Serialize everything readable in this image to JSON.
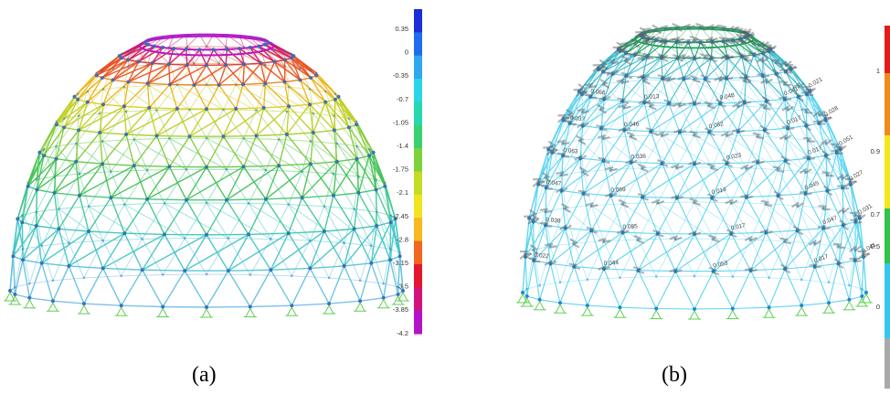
{
  "panel_a": {
    "caption": "(a)",
    "legend_ticks": [
      "0.35",
      "0",
      "-0.35",
      "-0.7",
      "-1.05",
      "-1.4",
      "-1.75",
      "-2.1",
      "-2.45",
      "-2.8",
      "-3.15",
      "-3.5",
      "-3.85",
      "-4.2"
    ],
    "legend_colors": [
      "#1a2fd6",
      "#1f6cf0",
      "#2ea8ef",
      "#29d6e8",
      "#26d7b0",
      "#39d070",
      "#7cd23a",
      "#c3dc26",
      "#f2e31f",
      "#f8b81e",
      "#f2661d",
      "#e4162d",
      "#d4137a",
      "#b414c9"
    ]
  },
  "panel_b": {
    "caption": "(b)",
    "legend_ticks": [
      "1",
      "0.9",
      "0.7",
      "0.5",
      "0"
    ],
    "legend_colors": [
      "#e41b1b",
      "#f08a1a",
      "#f0e81c",
      "#33c24a",
      "#35c8ef",
      "#a9a9a9"
    ],
    "member_labels": [
      "0.041",
      "0.017",
      "0.053",
      "0.044",
      "0.022",
      "0.031",
      "0.047",
      "0.017",
      "0.085",
      "0.038",
      "0.027",
      "0.045",
      "0.014",
      "0.069",
      "0.047",
      "0.051",
      "0.017",
      "0.023",
      "0.036",
      "0.063",
      "0.028",
      "0.017",
      "0.052",
      "0.046",
      "0.037",
      "0.021",
      "0.041",
      "0.048",
      "0.013",
      "0.066"
    ]
  }
}
